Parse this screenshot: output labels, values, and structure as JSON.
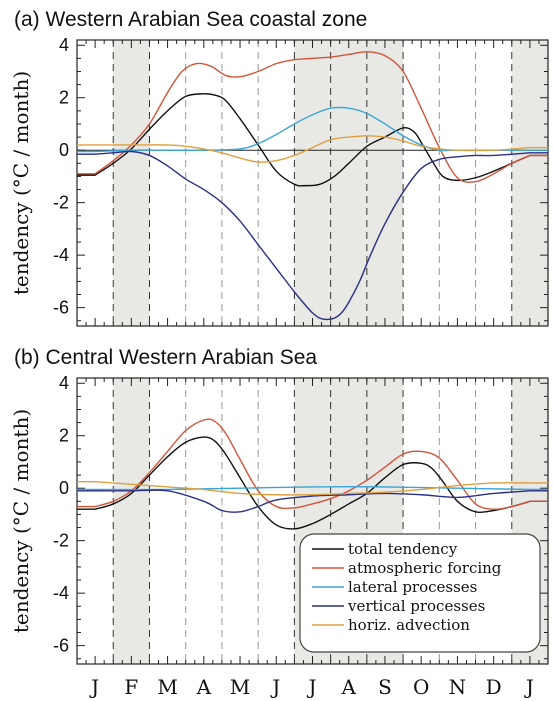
{
  "colors": {
    "total": "#111111",
    "atmos": "#d2553a",
    "lateral": "#3aa6d8",
    "vertical": "#2a2f88",
    "horiz": "#e0a040",
    "shade": "#e8e8e4"
  },
  "chart_data": [
    {
      "type": "line",
      "title": "(a) Western Arabian Sea coastal zone",
      "xlabel": "",
      "ylabel": "tendency (°C / month)",
      "ylim": [
        -6.7,
        4.2
      ],
      "yticks": [
        4,
        2,
        0,
        -2,
        -4,
        -6
      ],
      "x_ticks": [
        "J",
        "F",
        "M",
        "A",
        "M",
        "J",
        "J",
        "A",
        "S",
        "O",
        "N",
        "D",
        "J"
      ],
      "grid": "dashed vertical lines at month boundaries",
      "shaded_periods": [
        [
          0.5,
          1.5
        ],
        [
          5.5,
          8.5
        ],
        [
          11.5,
          12.5
        ]
      ],
      "zero_line": true,
      "series": [
        {
          "name": "total tendency",
          "key": "total",
          "x": [
            0,
            0.5,
            1,
            1.5,
            2,
            2.5,
            3,
            3.3,
            3.6,
            4,
            4.5,
            5,
            5.5,
            5.8,
            6.2,
            6.6,
            7,
            7.5,
            8,
            8.5,
            8.8,
            9,
            9.3,
            9.6,
            10,
            10.5,
            11,
            11.5,
            12
          ],
          "y": [
            -0.95,
            -0.5,
            0.05,
            0.8,
            1.5,
            2.05,
            2.15,
            2.1,
            1.9,
            1.2,
            0.2,
            -0.8,
            -1.3,
            -1.35,
            -1.3,
            -1.0,
            -0.5,
            0.15,
            0.5,
            0.85,
            0.7,
            0.3,
            -0.4,
            -1.0,
            -1.15,
            -1.05,
            -0.8,
            -0.5,
            -0.2
          ]
        },
        {
          "name": "atmospheric forcing",
          "key": "atmos",
          "x": [
            0,
            0.5,
            1,
            1.5,
            2,
            2.4,
            2.8,
            3.2,
            3.6,
            4,
            4.5,
            5,
            5.5,
            6,
            6.5,
            7,
            7.5,
            8,
            8.5,
            9,
            9.5,
            10,
            10.5,
            11,
            11.5,
            12
          ],
          "y": [
            -0.9,
            -0.4,
            0.2,
            1.0,
            2.2,
            3.0,
            3.3,
            3.2,
            2.85,
            2.8,
            3.0,
            3.3,
            3.45,
            3.5,
            3.55,
            3.65,
            3.75,
            3.6,
            3.0,
            1.6,
            0.1,
            -1.05,
            -1.2,
            -0.9,
            -0.5,
            -0.2
          ]
        },
        {
          "name": "lateral processes",
          "key": "lateral",
          "x": [
            0,
            1,
            2,
            3,
            4,
            4.5,
            5,
            5.5,
            6,
            6.5,
            7,
            7.5,
            8,
            8.5,
            9,
            9.5,
            10,
            11,
            12
          ],
          "y": [
            -0.05,
            0.0,
            0.0,
            0.0,
            0.05,
            0.25,
            0.6,
            1.0,
            1.35,
            1.6,
            1.6,
            1.4,
            1.0,
            0.55,
            0.2,
            0.0,
            0.0,
            0.0,
            0.0
          ]
        },
        {
          "name": "vertical processes",
          "key": "vertical",
          "x": [
            0,
            0.5,
            1,
            1.5,
            2,
            2.5,
            3,
            3.5,
            4,
            4.5,
            5,
            5.5,
            5.8,
            6,
            6.2,
            6.4,
            6.6,
            6.8,
            7,
            7.3,
            7.6,
            8,
            8.5,
            9,
            9.5,
            10,
            10.5,
            11,
            12
          ],
          "y": [
            -0.15,
            -0.1,
            -0.05,
            -0.2,
            -0.6,
            -1.1,
            -1.5,
            -2.0,
            -2.7,
            -3.6,
            -4.5,
            -5.4,
            -5.9,
            -6.2,
            -6.4,
            -6.45,
            -6.4,
            -6.2,
            -5.8,
            -5.0,
            -4.0,
            -2.8,
            -1.6,
            -0.7,
            -0.35,
            -0.25,
            -0.2,
            -0.2,
            -0.1
          ]
        },
        {
          "name": "horiz. advection",
          "key": "horiz",
          "x": [
            0,
            1,
            2,
            2.5,
            3,
            3.5,
            4,
            4.5,
            5,
            5.5,
            6,
            6.5,
            7,
            7.5,
            8,
            8.5,
            9,
            9.5,
            10,
            11,
            12
          ],
          "y": [
            0.2,
            0.2,
            0.2,
            0.15,
            0.05,
            -0.1,
            -0.3,
            -0.45,
            -0.4,
            -0.2,
            0.1,
            0.4,
            0.5,
            0.55,
            0.5,
            0.35,
            0.15,
            0.05,
            0.0,
            0.0,
            0.1
          ]
        }
      ]
    },
    {
      "type": "line",
      "title": "(b) Central Western Arabian Sea",
      "xlabel": "",
      "ylabel": "tendency (°C / month)",
      "ylim": [
        -6.7,
        4.2
      ],
      "yticks": [
        4,
        2,
        0,
        -2,
        -4,
        -6
      ],
      "x_ticks": [
        "J",
        "F",
        "M",
        "A",
        "M",
        "J",
        "J",
        "A",
        "S",
        "O",
        "N",
        "D",
        "J"
      ],
      "grid": "dashed vertical lines at month boundaries",
      "shaded_periods": [
        [
          0.5,
          1.5
        ],
        [
          5.5,
          8.5
        ],
        [
          11.5,
          12.5
        ]
      ],
      "zero_line": false,
      "legend": "bottom-right",
      "series": [
        {
          "name": "total tendency",
          "key": "total",
          "x": [
            0,
            0.5,
            1,
            1.5,
            2,
            2.5,
            3,
            3.3,
            3.6,
            4,
            4.5,
            5,
            5.5,
            6,
            6.5,
            7,
            7.5,
            8,
            8.5,
            9,
            9.3,
            9.6,
            10,
            10.5,
            11,
            11.5,
            12
          ],
          "y": [
            -0.8,
            -0.6,
            -0.2,
            0.5,
            1.2,
            1.75,
            1.95,
            1.8,
            1.3,
            0.4,
            -0.7,
            -1.4,
            -1.55,
            -1.35,
            -1.0,
            -0.6,
            -0.2,
            0.4,
            0.9,
            0.95,
            0.75,
            0.25,
            -0.5,
            -0.9,
            -0.85,
            -0.7,
            -0.5
          ]
        },
        {
          "name": "atmospheric forcing",
          "key": "atmos",
          "x": [
            0,
            0.5,
            1,
            1.5,
            2,
            2.5,
            3,
            3.3,
            3.6,
            4,
            4.5,
            5,
            5.5,
            6,
            6.5,
            7,
            7.5,
            8,
            8.5,
            9,
            9.5,
            10,
            10.5,
            11,
            11.5,
            12
          ],
          "y": [
            -0.7,
            -0.5,
            -0.1,
            0.6,
            1.4,
            2.2,
            2.6,
            2.55,
            2.1,
            1.1,
            -0.1,
            -0.7,
            -0.75,
            -0.6,
            -0.4,
            -0.1,
            0.3,
            0.8,
            1.3,
            1.4,
            1.15,
            0.3,
            -0.6,
            -0.8,
            -0.7,
            -0.5
          ]
        },
        {
          "name": "lateral processes",
          "key": "lateral",
          "x": [
            0,
            2,
            4,
            6,
            8,
            10,
            12
          ],
          "y": [
            -0.05,
            -0.05,
            0.0,
            0.05,
            0.05,
            0.0,
            -0.05
          ]
        },
        {
          "name": "vertical processes",
          "key": "vertical",
          "x": [
            0,
            1,
            2,
            3,
            3.5,
            4,
            4.5,
            5,
            6,
            7,
            8,
            9,
            10,
            11,
            12
          ],
          "y": [
            -0.1,
            -0.1,
            -0.1,
            -0.5,
            -0.85,
            -0.9,
            -0.7,
            -0.45,
            -0.3,
            -0.25,
            -0.2,
            -0.25,
            -0.35,
            -0.2,
            -0.1
          ]
        },
        {
          "name": "horiz. advection",
          "key": "horiz",
          "x": [
            0,
            1,
            2,
            3,
            4,
            5,
            6,
            7,
            8,
            9,
            10,
            11,
            12
          ],
          "y": [
            0.25,
            0.15,
            0.05,
            -0.05,
            -0.2,
            -0.25,
            -0.25,
            -0.2,
            -0.15,
            -0.05,
            0.1,
            0.2,
            0.2
          ]
        }
      ]
    }
  ]
}
